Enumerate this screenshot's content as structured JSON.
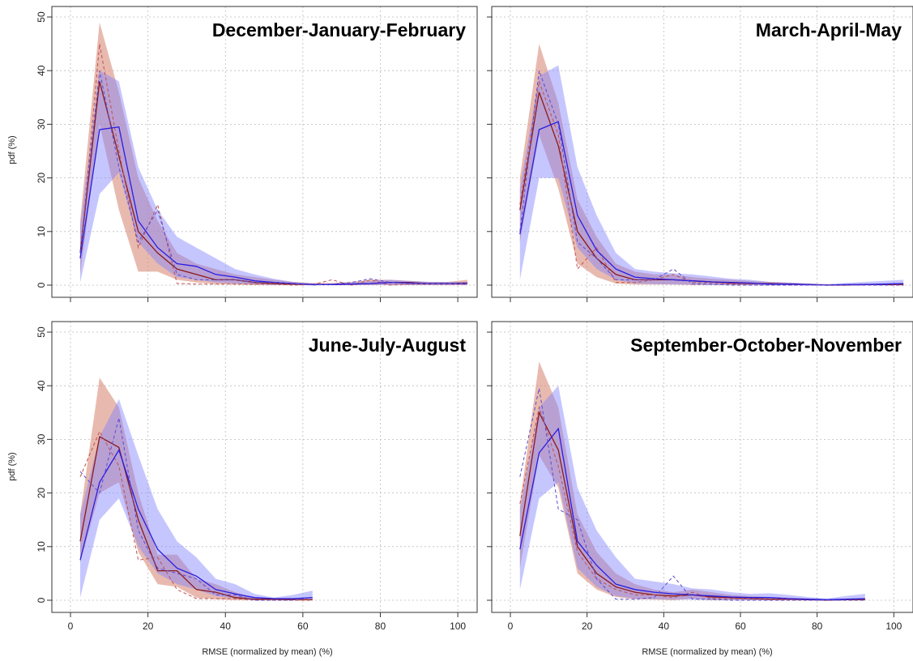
{
  "figure": {
    "ylabel": "pdf (%)",
    "xlabel": "RMSE (normalized by mean) (%)",
    "colors": {
      "red_fill": "#d98c7a",
      "red_line": "#8b1a1a",
      "red_dash": "#c0504d",
      "blue_fill": "#8080ff",
      "blue_line": "#2a1de0",
      "blue_dash": "#5a4ad0"
    }
  },
  "chart_data": [
    {
      "type": "line",
      "title": "December-January-February",
      "xlim": [
        0,
        105
      ],
      "ylim": [
        0,
        50
      ],
      "xticks": [
        0,
        20,
        40,
        60,
        80,
        100
      ],
      "yticks": [
        0,
        10,
        20,
        30,
        40,
        50
      ],
      "grid": true,
      "x": [
        2.5,
        7.5,
        12.5,
        17.5,
        22.5,
        27.5,
        32.5,
        37.5,
        42.5,
        47.5,
        52.5,
        57.5,
        62.5,
        67.5,
        72.5,
        77.5,
        82.5,
        87.5,
        92.5,
        97.5,
        102.5
      ],
      "series": [
        {
          "color": "red",
          "style": "solid",
          "values": [
            6,
            38,
            24,
            10,
            6,
            3,
            2,
            1,
            1,
            0.5,
            0.3,
            0.2,
            0.1,
            0.1,
            0.2,
            0.3,
            0.5,
            0.5,
            0.3,
            0.3,
            0.4
          ],
          "lower": [
            2,
            30,
            14,
            2.5,
            2.5,
            1,
            0.5,
            0.2,
            0.1,
            0,
            0,
            0,
            0,
            0,
            0,
            0,
            0,
            0,
            0,
            0,
            0
          ],
          "upper": [
            12,
            49,
            36,
            20,
            12,
            6,
            4,
            3,
            2,
            1.5,
            1,
            0.6,
            0.4,
            0.4,
            0.6,
            1,
            1,
            0.8,
            0.6,
            0.6,
            1
          ]
        },
        {
          "color": "red",
          "style": "dashed",
          "values": [
            5,
            45,
            25,
            7,
            15,
            0.3,
            0.2,
            0.2,
            0.2,
            0.2,
            0.2,
            0,
            0.1,
            1,
            0,
            1,
            0,
            0.2,
            0.2,
            0.2,
            0.2
          ]
        },
        {
          "color": "blue",
          "style": "solid",
          "values": [
            5,
            29,
            29.5,
            12,
            7,
            4,
            3.5,
            2,
            1.5,
            0.8,
            0.5,
            0.3,
            0.1,
            0.1,
            0.2,
            0.3,
            0.5,
            0.4,
            0.3,
            0.3,
            0.3
          ],
          "lower": [
            0.5,
            17,
            21,
            8,
            4,
            1.5,
            1,
            0.5,
            0.3,
            0.1,
            0,
            0,
            0,
            0,
            0,
            0,
            0,
            0,
            0,
            0,
            0
          ],
          "upper": [
            11,
            40,
            38,
            22,
            14,
            9,
            7,
            5,
            3,
            2,
            1.2,
            0.6,
            0.3,
            0.3,
            0.5,
            0.8,
            1,
            0.8,
            0.6,
            0.6,
            0.6
          ]
        },
        {
          "color": "blue",
          "style": "dashed",
          "values": [
            6,
            40,
            22,
            8,
            14,
            2,
            1,
            1,
            1,
            0.5,
            0.5,
            0.3,
            0,
            0.2,
            0.5,
            1.2,
            0.5,
            0.3,
            0.3,
            0.3,
            0.3
          ]
        }
      ]
    },
    {
      "type": "line",
      "title": "March-April-May",
      "xlim": [
        0,
        105
      ],
      "ylim": [
        0,
        50
      ],
      "xticks": [
        0,
        20,
        40,
        60,
        80,
        100
      ],
      "yticks": [
        0,
        10,
        20,
        30,
        40,
        50
      ],
      "grid": true,
      "x": [
        2.5,
        7.5,
        12.5,
        17.5,
        22.5,
        27.5,
        32.5,
        37.5,
        42.5,
        47.5,
        52.5,
        57.5,
        62.5,
        67.5,
        72.5,
        77.5,
        82.5,
        87.5,
        92.5,
        97.5,
        102.5
      ],
      "series": [
        {
          "color": "red",
          "style": "solid",
          "values": [
            14,
            36,
            26,
            10,
            5,
            2,
            1,
            1,
            1,
            0.8,
            0.6,
            0.4,
            0.3,
            0.3,
            0.2,
            0.1,
            0,
            0,
            0.1,
            0.1,
            0.1
          ],
          "lower": [
            8,
            28,
            18,
            4,
            1.5,
            0.3,
            0.1,
            0.1,
            0.1,
            0,
            0,
            0,
            0,
            0,
            0,
            0,
            0,
            0,
            0,
            0,
            0
          ],
          "upper": [
            20,
            45,
            34,
            16,
            9,
            4,
            2.5,
            2,
            2,
            1.5,
            1.2,
            1,
            0.8,
            0.6,
            0.5,
            0.3,
            0.2,
            0.2,
            0.3,
            0.3,
            0.3
          ]
        },
        {
          "color": "red",
          "style": "dashed",
          "values": [
            15,
            38,
            28,
            3,
            7,
            0.5,
            0.5,
            1,
            2,
            0.5,
            0.5,
            0.2,
            0,
            0,
            0,
            0,
            0,
            0,
            0,
            0,
            0
          ]
        },
        {
          "color": "blue",
          "style": "solid",
          "values": [
            9.5,
            29,
            30.5,
            13,
            6.5,
            3,
            1.5,
            1.2,
            1,
            0.8,
            0.6,
            0.5,
            0.4,
            0.2,
            0.2,
            0.1,
            0,
            0.1,
            0.1,
            0.2,
            0.3
          ],
          "lower": [
            1,
            20,
            20,
            7,
            3,
            1,
            0.3,
            0.2,
            0.1,
            0.1,
            0,
            0,
            0,
            0,
            0,
            0,
            0,
            0,
            0,
            0,
            0
          ],
          "upper": [
            18,
            39,
            41,
            22,
            13,
            6,
            3,
            2.5,
            2.2,
            2,
            1.6,
            1.2,
            1,
            0.6,
            0.5,
            0.3,
            0.2,
            0.4,
            0.6,
            0.8,
            1
          ]
        },
        {
          "color": "blue",
          "style": "dashed",
          "values": [
            10,
            40,
            30,
            8,
            5,
            1,
            1,
            1,
            3,
            0.2,
            0.2,
            0,
            0,
            0,
            0,
            0,
            0,
            0,
            0,
            0,
            0
          ]
        }
      ]
    },
    {
      "type": "line",
      "title": "June-July-August",
      "xlim": [
        0,
        105
      ],
      "ylim": [
        0,
        50
      ],
      "xticks": [
        0,
        20,
        40,
        60,
        80,
        100
      ],
      "yticks": [
        0,
        10,
        20,
        30,
        40,
        50
      ],
      "grid": true,
      "x": [
        2.5,
        7.5,
        12.5,
        17.5,
        22.5,
        27.5,
        32.5,
        37.5,
        42.5,
        47.5,
        52.5,
        57.5,
        62.5
      ],
      "series": [
        {
          "color": "red",
          "style": "solid",
          "values": [
            11,
            30.5,
            28.5,
            15,
            5.5,
            5.5,
            2,
            1.5,
            0.5,
            0.2,
            0.2,
            0.1,
            0.1
          ],
          "lower": [
            7,
            20,
            22,
            9,
            3,
            2.5,
            0.5,
            0.2,
            0,
            0,
            0,
            0,
            0
          ],
          "upper": [
            16,
            41.5,
            36,
            20,
            8.5,
            8.5,
            4,
            3,
            1.5,
            0.5,
            0.3,
            0.2,
            0.2
          ]
        },
        {
          "color": "red",
          "style": "dashed",
          "values": [
            23,
            31.5,
            25,
            7.5,
            8,
            2,
            0.3,
            0.3,
            0.3,
            0,
            0,
            0,
            0
          ]
        },
        {
          "color": "blue",
          "style": "solid",
          "values": [
            7.5,
            22,
            28,
            17,
            9.5,
            6,
            4.5,
            2,
            1.2,
            0.5,
            0.3,
            0.3,
            0.5
          ],
          "lower": [
            0.5,
            15,
            19,
            10,
            5,
            3,
            2,
            0.8,
            0.3,
            0,
            0,
            0,
            0
          ],
          "upper": [
            16,
            30.5,
            37.5,
            27,
            17,
            11,
            8,
            4,
            3,
            1.2,
            0.5,
            1,
            1.8
          ]
        },
        {
          "color": "blue",
          "style": "dashed",
          "values": [
            24,
            20,
            34,
            13,
            6,
            5,
            4,
            1,
            1,
            0,
            0,
            0,
            0.5
          ]
        }
      ]
    },
    {
      "type": "line",
      "title": "September-October-November",
      "xlim": [
        0,
        105
      ],
      "ylim": [
        0,
        50
      ],
      "xticks": [
        0,
        20,
        40,
        60,
        80,
        100
      ],
      "yticks": [
        0,
        10,
        20,
        30,
        40,
        50
      ],
      "grid": true,
      "x": [
        2.5,
        7.5,
        12.5,
        17.5,
        22.5,
        27.5,
        32.5,
        37.5,
        42.5,
        47.5,
        52.5,
        57.5,
        62.5,
        67.5,
        72.5,
        77.5,
        82.5,
        87.5,
        92.5
      ],
      "series": [
        {
          "color": "red",
          "style": "solid",
          "values": [
            12,
            35,
            28,
            10,
            5,
            2.5,
            1.5,
            1,
            0.8,
            1,
            0.6,
            0.5,
            0.3,
            0.2,
            0.2,
            0.1,
            0,
            0.1,
            0.1
          ],
          "lower": [
            6,
            27,
            21,
            5,
            2,
            0.6,
            0.2,
            0.1,
            0,
            0.3,
            0,
            0,
            0,
            0,
            0,
            0,
            0,
            0,
            0
          ],
          "upper": [
            18,
            44.5,
            36,
            16,
            9,
            5,
            3,
            2,
            1.5,
            2,
            1.5,
            1,
            0.8,
            0.6,
            0.5,
            0.3,
            0.2,
            0.2,
            0.3
          ]
        },
        {
          "color": "red",
          "style": "dashed",
          "values": [
            18,
            36,
            25,
            9,
            4,
            2,
            1,
            1,
            0.5,
            1.5,
            0.3,
            0.3,
            0.3,
            0.2,
            0.2,
            0,
            0,
            0,
            0
          ]
        },
        {
          "color": "blue",
          "style": "solid",
          "values": [
            9.5,
            27.5,
            32,
            11,
            6.5,
            3,
            2,
            1.5,
            1.2,
            1,
            0.8,
            0.6,
            0.5,
            0.5,
            0.3,
            0.2,
            0.1,
            0.2,
            0.3
          ],
          "lower": [
            2,
            19,
            22,
            6,
            2.5,
            0.8,
            0.3,
            0.2,
            0.1,
            0.1,
            0,
            0,
            0,
            0,
            0,
            0,
            0,
            0,
            0
          ],
          "upper": [
            17,
            36,
            40,
            21,
            13,
            8,
            4,
            3.5,
            3,
            2.2,
            2,
            1.5,
            1.2,
            1.3,
            1,
            0.6,
            0.3,
            0.8,
            1.2
          ]
        },
        {
          "color": "blue",
          "style": "dashed",
          "values": [
            23,
            39.5,
            17,
            15,
            4,
            0.2,
            0.2,
            0.5,
            4.5,
            0.2,
            0.2,
            0,
            0,
            0,
            0,
            0,
            0,
            0,
            0
          ]
        }
      ]
    }
  ]
}
